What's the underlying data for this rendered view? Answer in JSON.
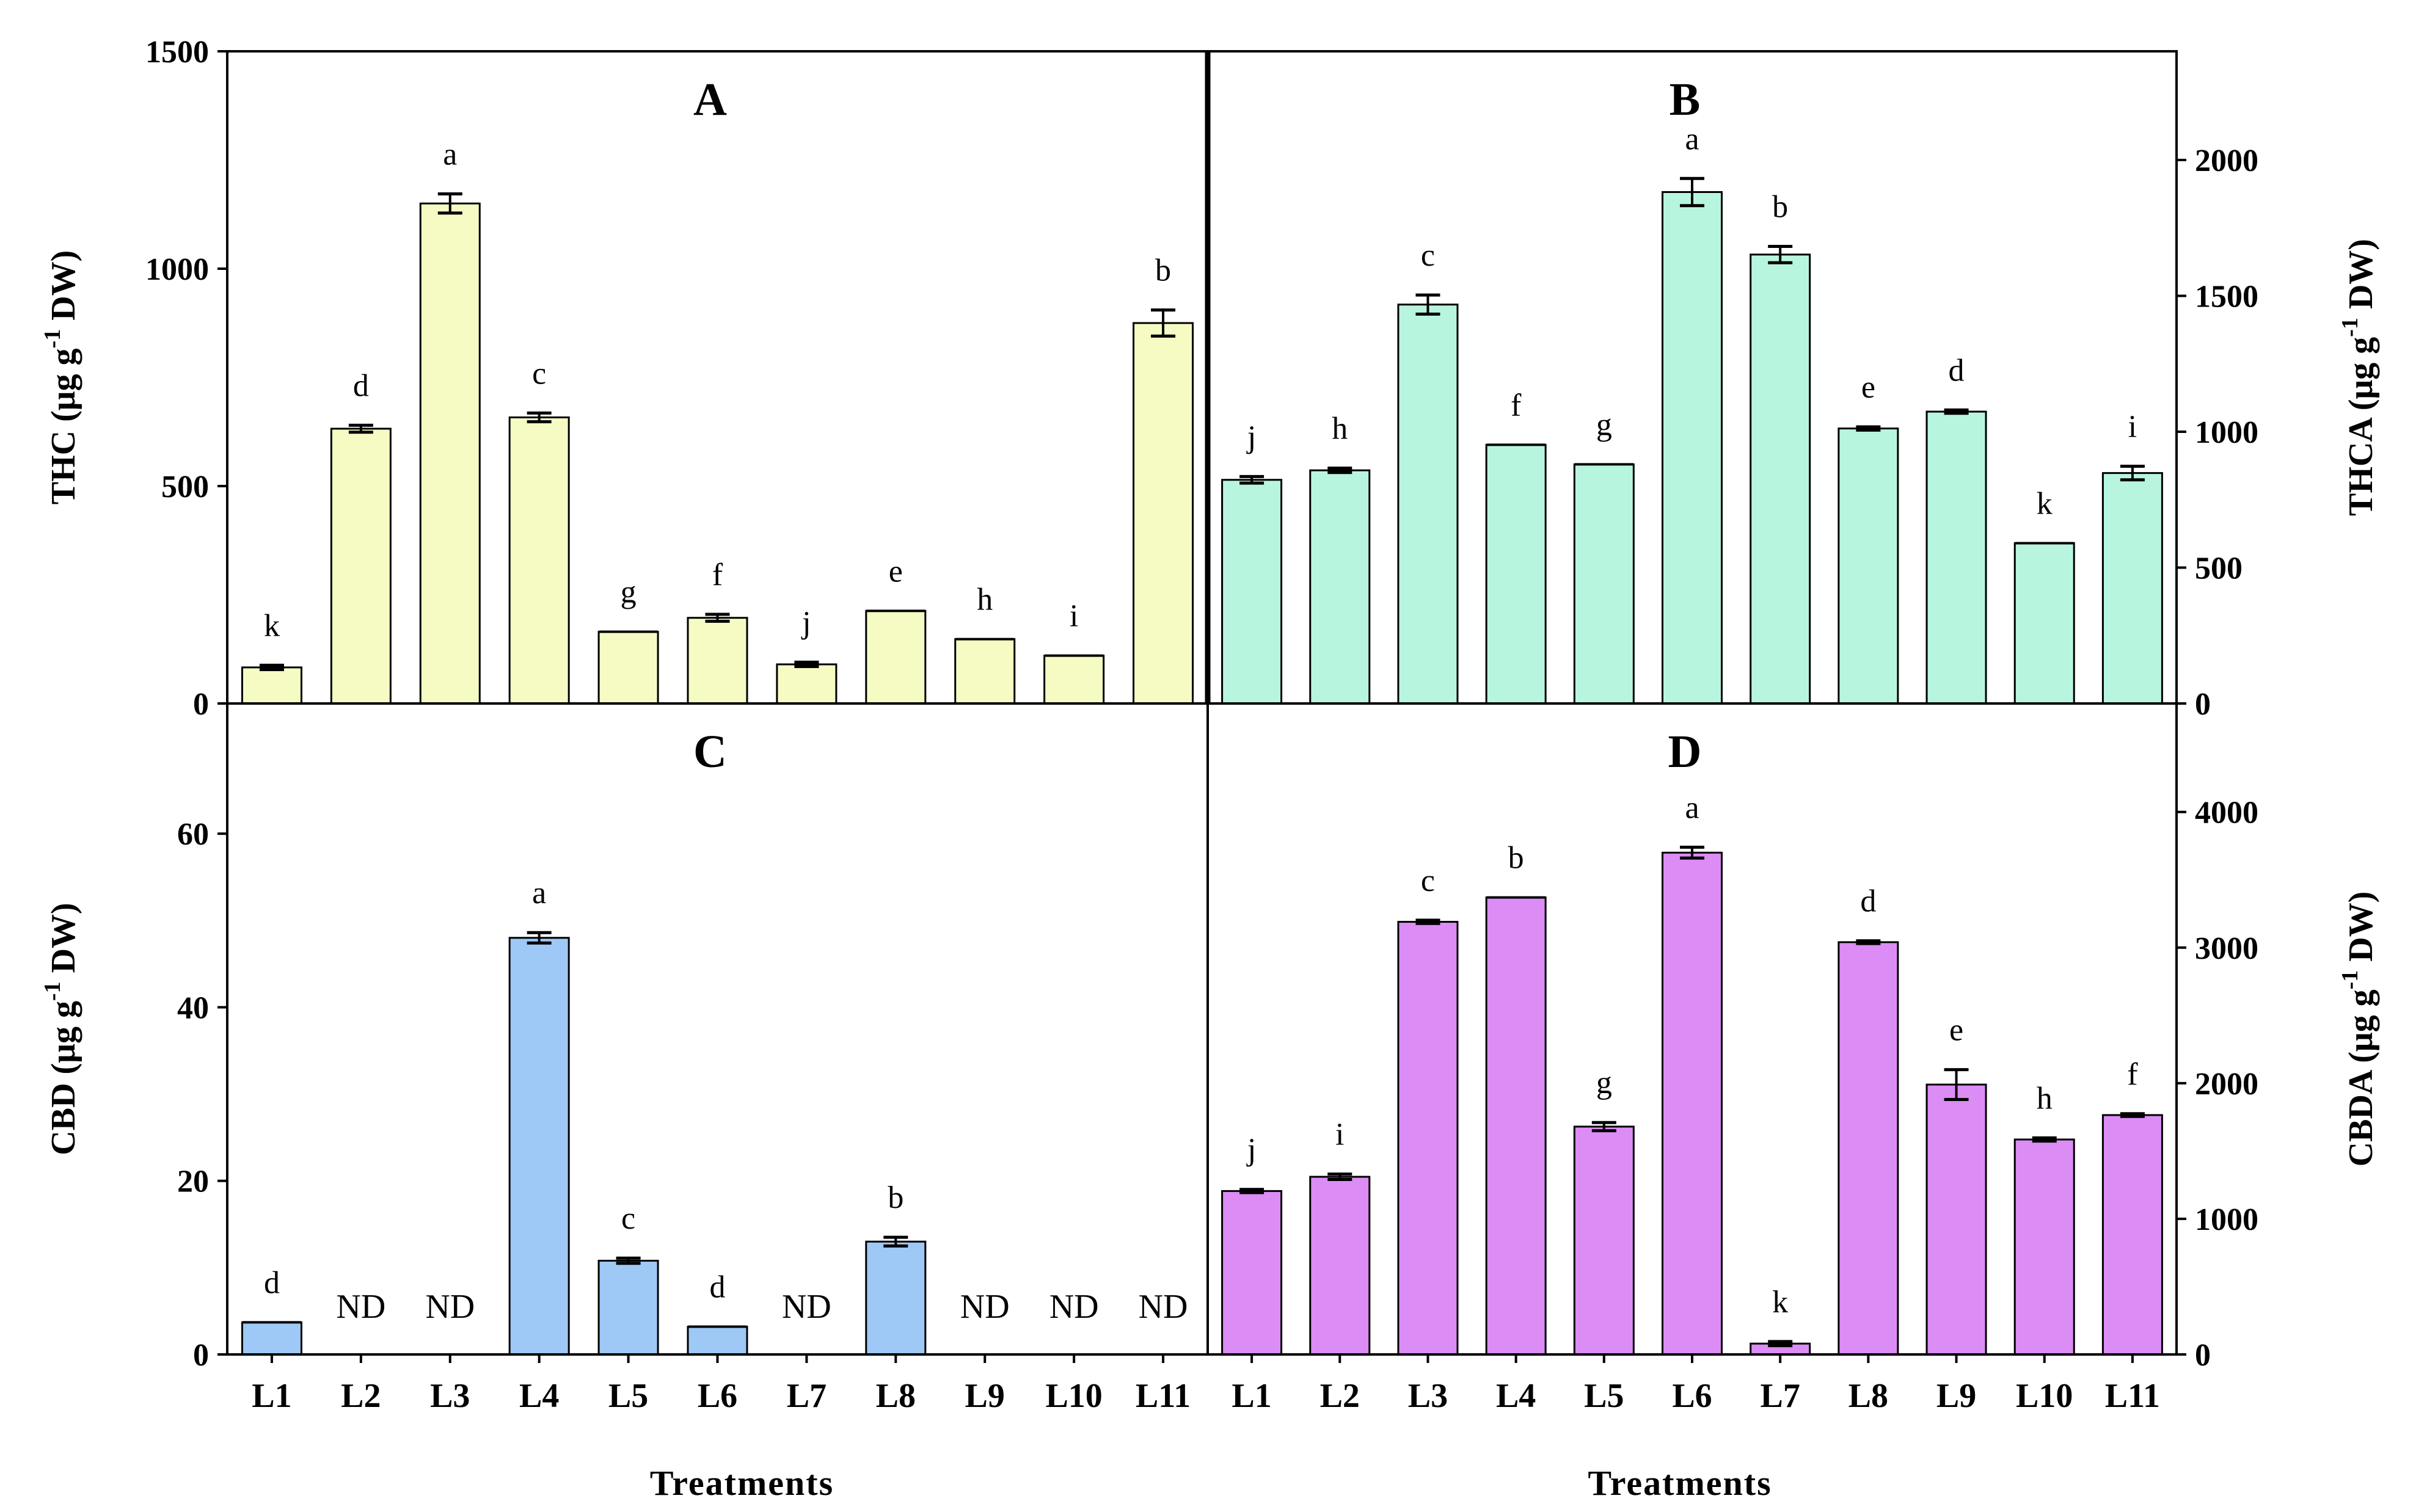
{
  "colors": {
    "A": "#f5fbc2",
    "B": "#b8f5df",
    "C": "#9ec8f5",
    "D": "#dc8cf5",
    "edge": "#000000"
  },
  "chart_data": [
    {
      "panel": "A",
      "type": "bar",
      "title": "A",
      "ylabel_main": "THC (μg g",
      "ylabel_sup": "-1",
      "ylabel_tail": " DW)",
      "ylim": [
        0,
        1500
      ],
      "yticks": [
        0,
        500,
        1000,
        1500
      ],
      "categories": [
        "L1",
        "L2",
        "L3",
        "L4",
        "L5",
        "L6",
        "L7",
        "L8",
        "L9",
        "L10",
        "L11"
      ],
      "values": [
        83,
        632,
        1150,
        658,
        165,
        197,
        90,
        213,
        148,
        110,
        875
      ],
      "errors": [
        5,
        8,
        22,
        10,
        0,
        8,
        5,
        0,
        0,
        0,
        30
      ],
      "letters": [
        "k",
        "d",
        "a",
        "c",
        "g",
        "f",
        "j",
        "e",
        "h",
        "i",
        "b"
      ]
    },
    {
      "panel": "B",
      "type": "bar",
      "title": "B",
      "ylabel_main": "THCA (μg g",
      "ylabel_sup": "-1",
      "ylabel_tail": " DW)",
      "ylim": [
        0,
        2400
      ],
      "yticks": [
        0,
        500,
        1000,
        1500,
        2000
      ],
      "categories": [
        "L1",
        "L2",
        "L3",
        "L4",
        "L5",
        "L6",
        "L7",
        "L8",
        "L9",
        "L10",
        "L11"
      ],
      "values": [
        823,
        858,
        1468,
        952,
        880,
        1882,
        1652,
        1012,
        1074,
        590,
        848
      ],
      "errors": [
        12,
        8,
        35,
        0,
        0,
        50,
        30,
        6,
        6,
        0,
        25
      ],
      "letters": [
        "j",
        "h",
        "c",
        "f",
        "g",
        "a",
        "b",
        "e",
        "d",
        "k",
        "i"
      ]
    },
    {
      "panel": "C",
      "type": "bar",
      "title": "C",
      "ylabel_main": "CBD (μg g",
      "ylabel_sup": "-1",
      "ylabel_tail": " DW)",
      "ylim": [
        0,
        75
      ],
      "yticks": [
        0,
        20,
        40,
        60
      ],
      "categories": [
        "L1",
        "L2",
        "L3",
        "L4",
        "L5",
        "L6",
        "L7",
        "L8",
        "L9",
        "L10",
        "L11"
      ],
      "values": [
        3.7,
        null,
        null,
        48,
        10.8,
        3.2,
        null,
        13,
        null,
        null,
        null
      ],
      "errors": [
        0,
        0,
        0,
        0.6,
        0.3,
        0,
        0,
        0.5,
        0,
        0,
        0
      ],
      "letters": [
        "d",
        "ND",
        "ND",
        "a",
        "c",
        "d",
        "ND",
        "b",
        "ND",
        "ND",
        "ND"
      ],
      "xlabel": "Treatments"
    },
    {
      "panel": "D",
      "type": "bar",
      "title": "D",
      "ylabel_main": "CBDA (μg g",
      "ylabel_sup": "-1",
      "ylabel_tail": " DW)",
      "ylim": [
        0,
        4800
      ],
      "yticks": [
        0,
        1000,
        2000,
        3000,
        4000
      ],
      "categories": [
        "L1",
        "L2",
        "L3",
        "L4",
        "L5",
        "L6",
        "L7",
        "L8",
        "L9",
        "L10",
        "L11"
      ],
      "values": [
        1205,
        1310,
        3190,
        3370,
        1680,
        3700,
        80,
        3040,
        1990,
        1585,
        1765
      ],
      "errors": [
        12,
        20,
        12,
        0,
        30,
        40,
        15,
        10,
        110,
        12,
        10
      ],
      "letters": [
        "j",
        "i",
        "c",
        "b",
        "g",
        "a",
        "k",
        "d",
        "e",
        "h",
        "f"
      ],
      "xlabel": "Treatments"
    }
  ]
}
